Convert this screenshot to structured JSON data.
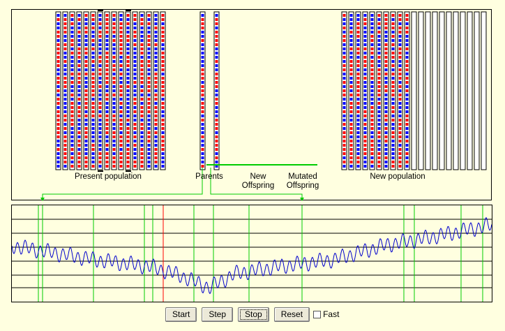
{
  "labels": {
    "present_population": "Present population",
    "parents": "Parents",
    "new_offspring_line1": "New",
    "new_offspring_line2": "Offspring",
    "mutated_offspring_line1": "Mutated",
    "mutated_offspring_line2": "Offspring",
    "new_population": "New population"
  },
  "controls": {
    "start": "Start",
    "step": "Step",
    "stop": "Stop",
    "reset": "Reset",
    "fast": "Fast",
    "fast_checked": false
  },
  "colors": {
    "background": "#ffffe0",
    "gene_a": "#0000ff",
    "gene_b": "#ff0000",
    "marker": "#00cc00",
    "curve": "#0000cc",
    "best": "#ff0000"
  }
}
